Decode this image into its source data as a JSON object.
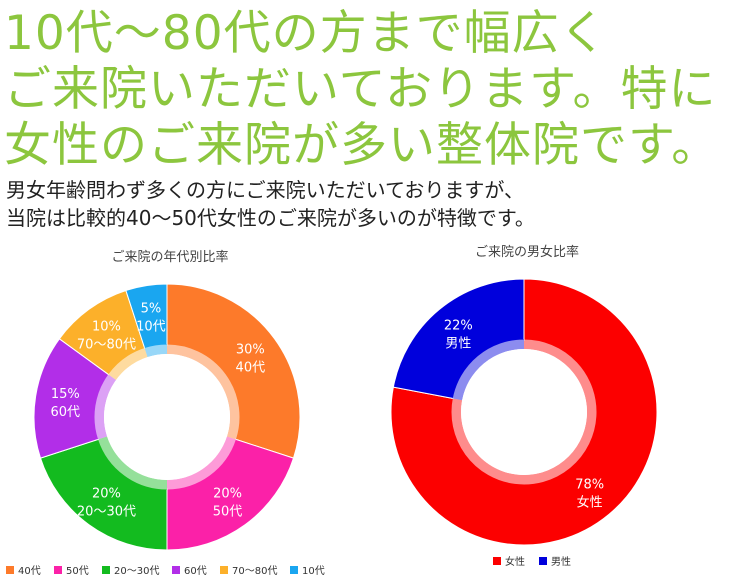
{
  "headline": {
    "lines": [
      "10代～80代の方まで幅広く",
      "ご来院いただいております。特に",
      "女性のご来院が多い整体院です。"
    ]
  },
  "description": {
    "lines": [
      "男女年齢問わず多くの方にご来院いただいておりますが、",
      "当院は比較的40～50代女性のご来院が多いのが特徴です。"
    ]
  },
  "chart_data": [
    {
      "type": "pie",
      "title": "ご来院の年代別比率",
      "categories": [
        "40代",
        "50代",
        "20～30代",
        "60代",
        "70～80代",
        "10代"
      ],
      "values": [
        30,
        20,
        20,
        15,
        10,
        5
      ],
      "value_labels": [
        "30%",
        "20%",
        "20%",
        "15%",
        "10%",
        "5%"
      ],
      "colors": [
        "#fd7a2a",
        "#fb21a8",
        "#13bb1f",
        "#b22ee8",
        "#fcb02a",
        "#1aa6f0"
      ],
      "legend": "bottom"
    },
    {
      "type": "pie",
      "title": "ご来院の男女比率",
      "categories": [
        "女性",
        "男性"
      ],
      "values": [
        78,
        22
      ],
      "value_labels": [
        "78%",
        "22%"
      ],
      "colors": [
        "#fc0000",
        "#0000dc"
      ],
      "legend": "bottom"
    }
  ]
}
